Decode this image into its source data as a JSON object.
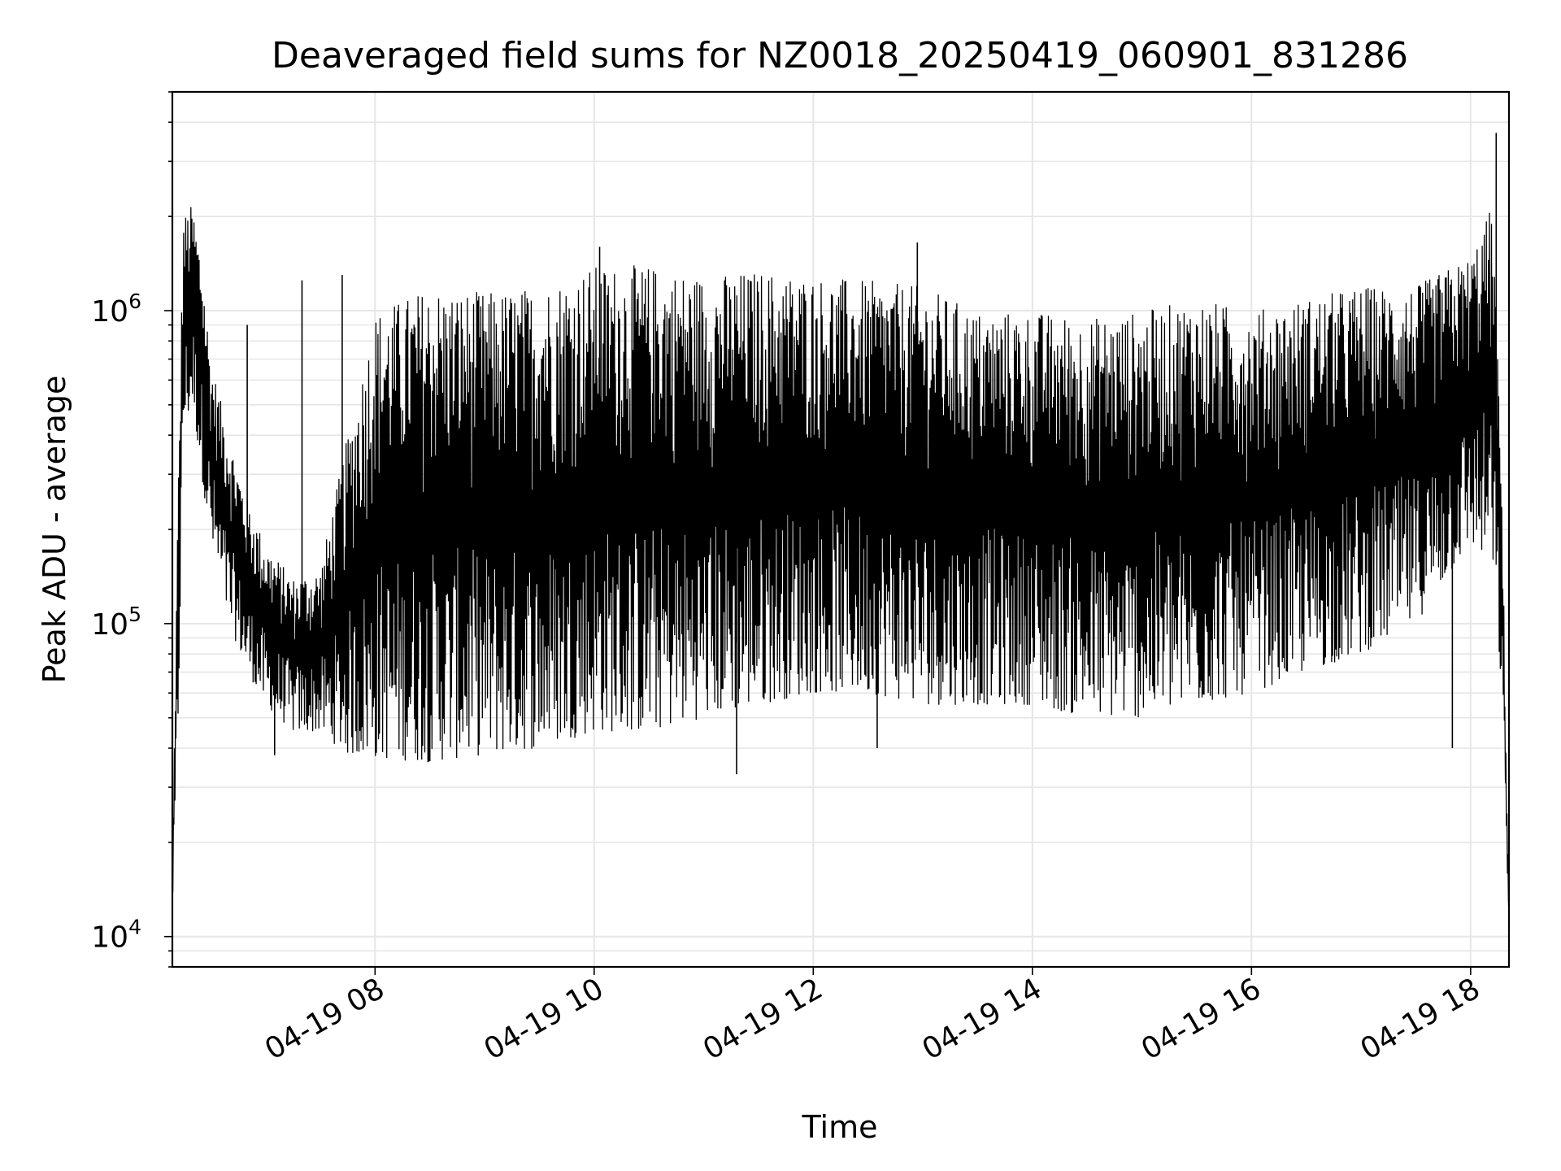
{
  "chart_data": {
    "type": "line",
    "title": "Deaveraged field sums for NZ0018_20250419_060901_831286",
    "xlabel": "Time",
    "ylabel": "Peak ADU - average",
    "x_scale": "time",
    "y_scale": "log",
    "xlim": [
      "2025-04-19 06:09",
      "2025-04-19 18:21"
    ],
    "ylim": [
      8000,
      5000000
    ],
    "x_ticks": [
      {
        "value": "2025-04-19 08:00",
        "label": "04-19 08"
      },
      {
        "value": "2025-04-19 10:00",
        "label": "04-19 10"
      },
      {
        "value": "2025-04-19 12:00",
        "label": "04-19 12"
      },
      {
        "value": "2025-04-19 14:00",
        "label": "04-19 14"
      },
      {
        "value": "2025-04-19 16:00",
        "label": "04-19 16"
      },
      {
        "value": "2025-04-19 18:00",
        "label": "04-19 18"
      }
    ],
    "y_ticks": [
      {
        "value": 10000,
        "base": "10",
        "exp": "4"
      },
      {
        "value": 100000,
        "base": "10",
        "exp": "5"
      },
      {
        "value": 1000000,
        "base": "10",
        "exp": "6"
      }
    ],
    "grid": true,
    "line_color": "#000000",
    "series": [
      {
        "upper_envelope": [
          [
            "2025-04-19 06:09",
            15000
          ],
          [
            "2025-04-19 06:12",
            250000
          ],
          [
            "2025-04-19 06:15",
            2000000
          ],
          [
            "2025-04-19 06:20",
            2200000
          ],
          [
            "2025-04-19 06:25",
            1500000
          ],
          [
            "2025-04-19 06:30",
            700000
          ],
          [
            "2025-04-19 06:40",
            400000
          ],
          [
            "2025-04-19 06:50",
            250000
          ],
          [
            "2025-04-19 07:00",
            180000
          ],
          [
            "2025-04-19 07:15",
            140000
          ],
          [
            "2025-04-19 07:30",
            150000
          ],
          [
            "2025-04-19 07:45",
            400000
          ],
          [
            "2025-04-19 08:00",
            1000000
          ],
          [
            "2025-04-19 08:30",
            1200000
          ],
          [
            "2025-04-19 09:00",
            1150000
          ],
          [
            "2025-04-19 09:30",
            1200000
          ],
          [
            "2025-04-19 10:00",
            1400000
          ],
          [
            "2025-04-19 10:30",
            1400000
          ],
          [
            "2025-04-19 11:00",
            1300000
          ],
          [
            "2025-04-19 11:30",
            1350000
          ],
          [
            "2025-04-19 12:00",
            1300000
          ],
          [
            "2025-04-19 12:30",
            1250000
          ],
          [
            "2025-04-19 13:00",
            1200000
          ],
          [
            "2025-04-19 13:30",
            1000000
          ],
          [
            "2025-04-19 14:00",
            1000000
          ],
          [
            "2025-04-19 14:30",
            950000
          ],
          [
            "2025-04-19 15:00",
            1000000
          ],
          [
            "2025-04-19 15:30",
            1100000
          ],
          [
            "2025-04-19 16:00",
            1000000
          ],
          [
            "2025-04-19 16:30",
            1100000
          ],
          [
            "2025-04-19 17:00",
            1200000
          ],
          [
            "2025-04-19 17:30",
            1200000
          ],
          [
            "2025-04-19 18:00",
            1500000
          ],
          [
            "2025-04-19 18:12",
            2200000
          ],
          [
            "2025-04-19 18:17",
            300000
          ],
          [
            "2025-04-19 18:21",
            12000
          ]
        ],
        "lower_envelope": [
          [
            "2025-04-19 06:09",
            12000
          ],
          [
            "2025-04-19 06:12",
            40000
          ],
          [
            "2025-04-19 06:15",
            400000
          ],
          [
            "2025-04-19 06:20",
            500000
          ],
          [
            "2025-04-19 06:25",
            300000
          ],
          [
            "2025-04-19 06:30",
            180000
          ],
          [
            "2025-04-19 06:40",
            100000
          ],
          [
            "2025-04-19 06:50",
            70000
          ],
          [
            "2025-04-19 07:00",
            55000
          ],
          [
            "2025-04-19 07:15",
            45000
          ],
          [
            "2025-04-19 07:30",
            45000
          ],
          [
            "2025-04-19 07:45",
            38000
          ],
          [
            "2025-04-19 08:00",
            37000
          ],
          [
            "2025-04-19 08:30",
            36000
          ],
          [
            "2025-04-19 09:00",
            38000
          ],
          [
            "2025-04-19 09:30",
            40000
          ],
          [
            "2025-04-19 10:00",
            45000
          ],
          [
            "2025-04-19 10:30",
            45000
          ],
          [
            "2025-04-19 11:00",
            50000
          ],
          [
            "2025-04-19 11:30",
            55000
          ],
          [
            "2025-04-19 12:00",
            60000
          ],
          [
            "2025-04-19 12:30",
            60000
          ],
          [
            "2025-04-19 13:00",
            55000
          ],
          [
            "2025-04-19 13:30",
            55000
          ],
          [
            "2025-04-19 14:00",
            55000
          ],
          [
            "2025-04-19 14:30",
            50000
          ],
          [
            "2025-04-19 15:00",
            50000
          ],
          [
            "2025-04-19 15:30",
            55000
          ],
          [
            "2025-04-19 16:00",
            60000
          ],
          [
            "2025-04-19 16:30",
            70000
          ],
          [
            "2025-04-19 17:00",
            80000
          ],
          [
            "2025-04-19 17:30",
            100000
          ],
          [
            "2025-04-19 18:00",
            180000
          ],
          [
            "2025-04-19 18:12",
            150000
          ],
          [
            "2025-04-19 18:17",
            60000
          ],
          [
            "2025-04-19 18:21",
            11000
          ]
        ],
        "spikes": [
          {
            "time": "2025-04-19 06:50",
            "value": 900000
          },
          {
            "time": "2025-04-19 07:20",
            "value": 1250000
          },
          {
            "time": "2025-04-19 07:42",
            "value": 1300000
          },
          {
            "time": "2025-04-19 10:03",
            "value": 1600000
          },
          {
            "time": "2025-04-19 12:57",
            "value": 1650000
          },
          {
            "time": "2025-04-19 18:14",
            "value": 3700000
          },
          {
            "time": "2025-04-19 07:05",
            "value": 38000
          },
          {
            "time": "2025-04-19 11:18",
            "value": 33000
          },
          {
            "time": "2025-04-19 12:35",
            "value": 40000
          },
          {
            "time": "2025-04-19 17:50",
            "value": 40000
          }
        ]
      }
    ]
  }
}
